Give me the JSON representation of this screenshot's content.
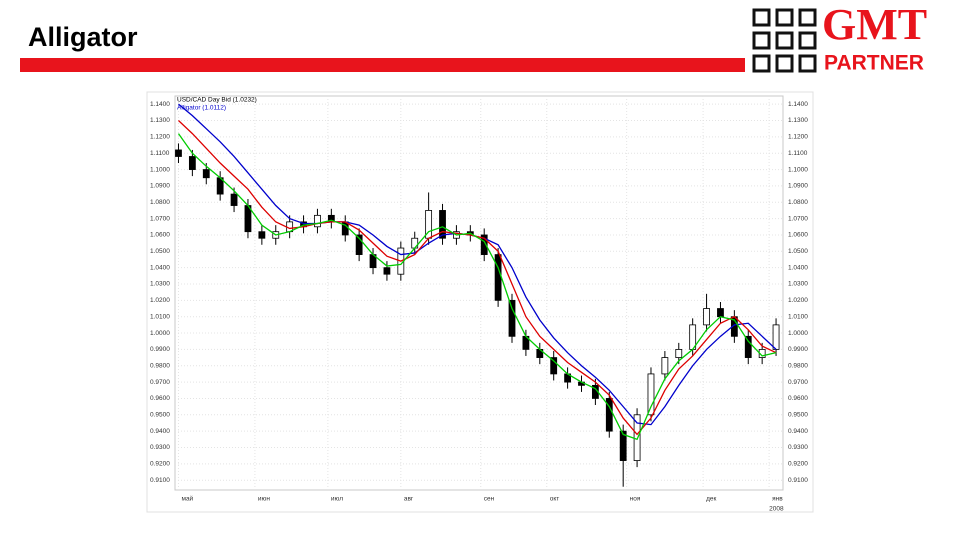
{
  "slide": {
    "title": "Alligator",
    "logo": [
      "GMT",
      "PARTNER"
    ]
  },
  "chart_data": {
    "type": "candlestick",
    "legend": [
      {
        "text": "USD/CAD Day Bid (1.0232)",
        "color": "#000000"
      },
      {
        "text": "Alligator (1.0112)",
        "color": "#0000cc"
      }
    ],
    "x": [
      0,
      4,
      8,
      12,
      16,
      20,
      24,
      28,
      32,
      36,
      40,
      44,
      48,
      52,
      56,
      60,
      64,
      68,
      72,
      76,
      80,
      84,
      88,
      92,
      96,
      100,
      104,
      108,
      112,
      116,
      120,
      124,
      128,
      132,
      136,
      140,
      144,
      148,
      152,
      156,
      160,
      164,
      168,
      172
    ],
    "open": [
      1.112,
      1.108,
      1.1,
      1.095,
      1.085,
      1.078,
      1.062,
      1.058,
      1.062,
      1.068,
      1.065,
      1.072,
      1.068,
      1.06,
      1.048,
      1.04,
      1.036,
      1.052,
      1.058,
      1.075,
      1.058,
      1.062,
      1.06,
      1.048,
      1.02,
      0.998,
      0.99,
      0.985,
      0.975,
      0.97,
      0.968,
      0.96,
      0.94,
      0.922,
      0.95,
      0.975,
      0.985,
      0.99,
      1.005,
      1.015,
      1.01,
      0.998,
      0.985,
      0.99
    ],
    "high": [
      1.116,
      1.112,
      1.104,
      1.099,
      1.089,
      1.082,
      1.066,
      1.066,
      1.072,
      1.072,
      1.076,
      1.076,
      1.072,
      1.064,
      1.052,
      1.044,
      1.056,
      1.062,
      1.086,
      1.079,
      1.066,
      1.066,
      1.064,
      1.052,
      1.024,
      1.002,
      0.994,
      0.989,
      0.979,
      0.974,
      0.972,
      0.964,
      0.944,
      0.954,
      0.979,
      0.989,
      0.994,
      1.009,
      1.024,
      1.019,
      1.014,
      1.002,
      0.994,
      1.009
    ],
    "low": [
      1.104,
      1.096,
      1.091,
      1.081,
      1.074,
      1.058,
      1.054,
      1.054,
      1.058,
      1.061,
      1.061,
      1.064,
      1.056,
      1.044,
      1.036,
      1.032,
      1.032,
      1.048,
      1.054,
      1.054,
      1.054,
      1.056,
      1.044,
      1.016,
      0.994,
      0.986,
      0.981,
      0.971,
      0.966,
      0.964,
      0.956,
      0.936,
      0.906,
      0.918,
      0.946,
      0.971,
      0.981,
      0.986,
      1.001,
      1.006,
      0.994,
      0.981,
      0.981,
      0.986
    ],
    "close": [
      1.108,
      1.1,
      1.095,
      1.085,
      1.078,
      1.062,
      1.058,
      1.062,
      1.068,
      1.065,
      1.072,
      1.068,
      1.06,
      1.048,
      1.04,
      1.036,
      1.052,
      1.058,
      1.075,
      1.058,
      1.062,
      1.06,
      1.048,
      1.02,
      0.998,
      0.99,
      0.985,
      0.975,
      0.97,
      0.968,
      0.96,
      0.94,
      0.922,
      0.95,
      0.975,
      0.985,
      0.99,
      1.005,
      1.015,
      1.01,
      0.998,
      0.985,
      0.99,
      1.005
    ],
    "series": [
      {
        "color": "#0000cc",
        "values": [
          1.14,
          1.133,
          1.125,
          1.117,
          1.108,
          1.098,
          1.088,
          1.078,
          1.07,
          1.067,
          1.067,
          1.068,
          1.068,
          1.066,
          1.06,
          1.053,
          1.048,
          1.049,
          1.055,
          1.06,
          1.061,
          1.06,
          1.058,
          1.054,
          1.04,
          1.022,
          1.008,
          0.997,
          0.988,
          0.98,
          0.973,
          0.965,
          0.955,
          0.945,
          0.944,
          0.955,
          0.968,
          0.98,
          0.99,
          0.998,
          1.005,
          1.006,
          0.998,
          0.99
        ]
      },
      {
        "color": "#dd0000",
        "values": [
          1.13,
          1.122,
          1.113,
          1.104,
          1.096,
          1.088,
          1.077,
          1.068,
          1.064,
          1.065,
          1.067,
          1.068,
          1.068,
          1.063,
          1.055,
          1.047,
          1.044,
          1.048,
          1.058,
          1.062,
          1.061,
          1.06,
          1.058,
          1.05,
          1.03,
          1.01,
          0.998,
          0.99,
          0.982,
          0.976,
          0.97,
          0.962,
          0.948,
          0.938,
          0.948,
          0.965,
          0.978,
          0.986,
          0.996,
          1.006,
          1.01,
          1.002,
          0.992,
          0.988
        ]
      },
      {
        "color": "#00cc00",
        "values": [
          1.122,
          1.11,
          1.102,
          1.095,
          1.087,
          1.078,
          1.066,
          1.06,
          1.062,
          1.066,
          1.067,
          1.069,
          1.066,
          1.058,
          1.048,
          1.041,
          1.042,
          1.052,
          1.062,
          1.065,
          1.06,
          1.061,
          1.056,
          1.04,
          1.015,
          0.998,
          0.99,
          0.983,
          0.975,
          0.97,
          0.966,
          0.955,
          0.938,
          0.935,
          0.955,
          0.972,
          0.983,
          0.99,
          1.002,
          1.01,
          1.008,
          0.995,
          0.986,
          0.988
        ]
      }
    ],
    "xlim": [
      -1,
      174
    ],
    "xticks": [
      {
        "value": 0,
        "label": "май"
      },
      {
        "value": 22,
        "label": "июн"
      },
      {
        "value": 43,
        "label": "июл"
      },
      {
        "value": 64,
        "label": "авг"
      },
      {
        "value": 87,
        "label": "сен"
      },
      {
        "value": 106,
        "label": "окт"
      },
      {
        "value": 129,
        "label": "ноя"
      },
      {
        "value": 151,
        "label": "дек"
      },
      {
        "value": 170,
        "label": "янв"
      }
    ],
    "year_label": "2008",
    "ylim": [
      0.904,
      1.145
    ],
    "yticks": [
      {
        "value": 0.91,
        "label": "0.9100"
      },
      {
        "value": 0.92,
        "label": "0.9200"
      },
      {
        "value": 0.93,
        "label": "0.9300"
      },
      {
        "value": 0.94,
        "label": "0.9400"
      },
      {
        "value": 0.95,
        "label": "0.9500"
      },
      {
        "value": 0.96,
        "label": "0.9600"
      },
      {
        "value": 0.97,
        "label": "0.9700"
      },
      {
        "value": 0.98,
        "label": "0.9800"
      },
      {
        "value": 0.99,
        "label": "0.9900"
      },
      {
        "value": 1.0,
        "label": "1.0000"
      },
      {
        "value": 1.01,
        "label": "1.0100"
      },
      {
        "value": 1.02,
        "label": "1.0200"
      },
      {
        "value": 1.03,
        "label": "1.0300"
      },
      {
        "value": 1.04,
        "label": "1.0400"
      },
      {
        "value": 1.05,
        "label": "1.0500"
      },
      {
        "value": 1.06,
        "label": "1.0600"
      },
      {
        "value": 1.07,
        "label": "1.0700"
      },
      {
        "value": 1.08,
        "label": "1.0800"
      },
      {
        "value": 1.09,
        "label": "1.0900"
      },
      {
        "value": 1.1,
        "label": "1.1000"
      },
      {
        "value": 1.11,
        "label": "1.1100"
      },
      {
        "value": 1.12,
        "label": "1.1200"
      },
      {
        "value": 1.13,
        "label": "1.1300"
      },
      {
        "value": 1.14,
        "label": "1.1400"
      }
    ],
    "grid": true
  }
}
